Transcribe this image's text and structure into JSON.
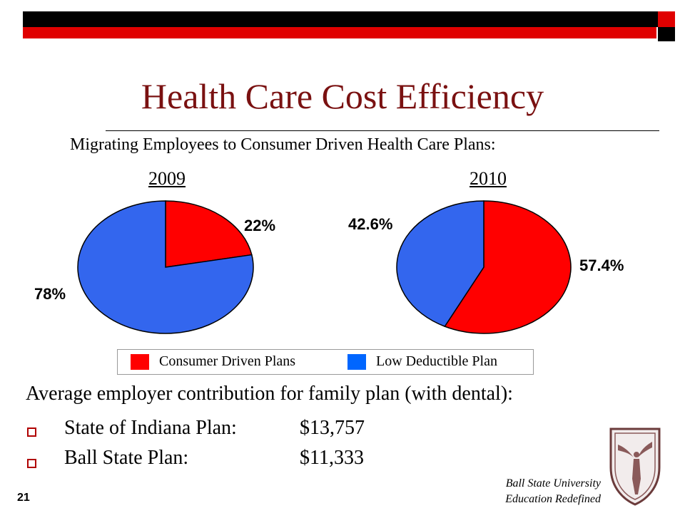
{
  "slide": {
    "title": "Health Care Cost Efficiency",
    "subtitle": "Migrating Employees to Consumer Driven Health Care Plans:",
    "page_number": "21",
    "brand_line1": "Ball State University",
    "brand_line2": "Education Redefined",
    "logo_icon": "university-seal-icon"
  },
  "chart_data": [
    {
      "type": "pie",
      "title": "2009",
      "categories": [
        "Consumer Driven Plans",
        "Low Deductible Plan"
      ],
      "values": [
        22,
        78
      ],
      "labels": [
        "22%",
        "78%"
      ],
      "colors": [
        "#ff0000",
        "#3366ee"
      ]
    },
    {
      "type": "pie",
      "title": "2010",
      "categories": [
        "Consumer Driven Plans",
        "Low Deductible Plan"
      ],
      "values": [
        57.4,
        42.6
      ],
      "labels": [
        "57.4%",
        "42.6%"
      ],
      "colors": [
        "#ff0000",
        "#3366ee"
      ]
    }
  ],
  "legend": {
    "items": [
      {
        "label": "Consumer Driven Plans",
        "color": "#ff0000"
      },
      {
        "label": "Low Deductible Plan",
        "color": "#0066ff"
      }
    ]
  },
  "body": {
    "heading": "Average employer contribution for family plan (with dental):",
    "items": [
      {
        "label": "State of Indiana Plan:",
        "value": "$13,757"
      },
      {
        "label": "Ball State Plan:",
        "value": "$11,333"
      }
    ]
  }
}
